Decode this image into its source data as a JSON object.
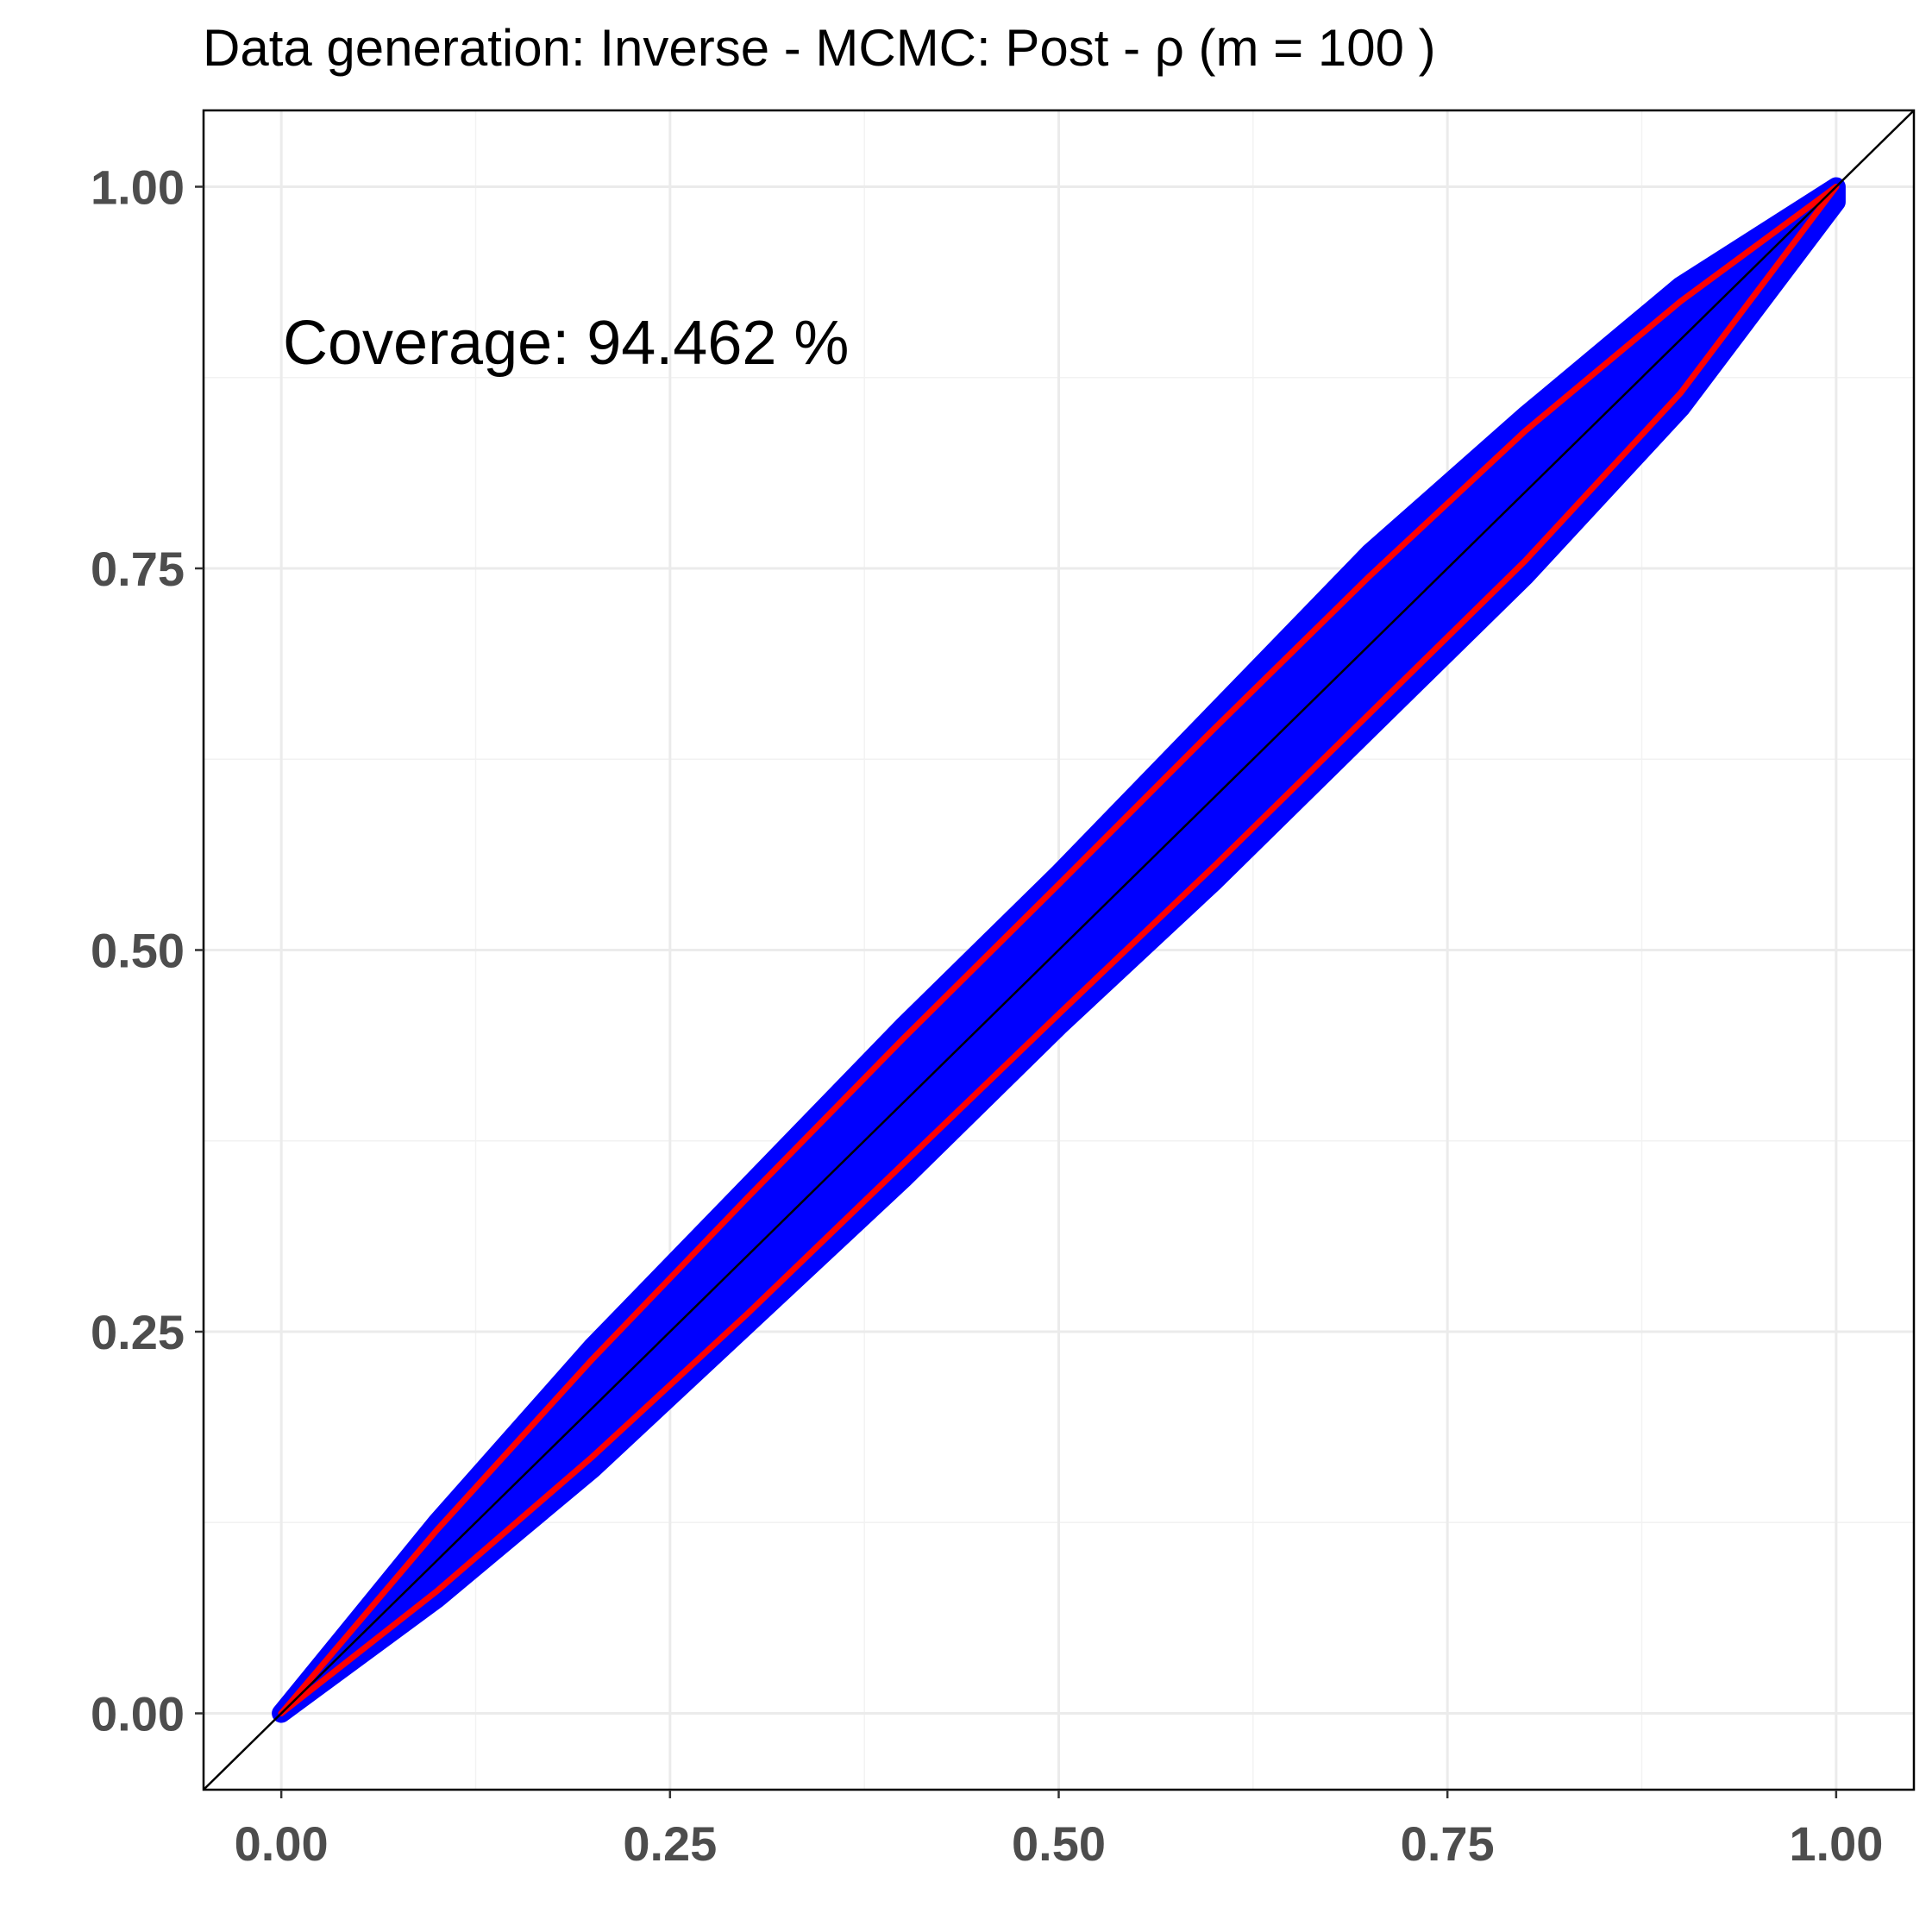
{
  "chart_data": {
    "type": "scatter",
    "title": "Data generation:  Inverse - MCMC:  Post  -  ρ  (m =  100 )",
    "xlabel": "",
    "ylabel": "",
    "xlim": [
      -0.05,
      1.05
    ],
    "ylim": [
      -0.05,
      1.05
    ],
    "x_ticks": [
      0.0,
      0.25,
      0.5,
      0.75,
      1.0
    ],
    "y_ticks": [
      0.0,
      0.25,
      0.5,
      0.75,
      1.0
    ],
    "x_tick_labels": [
      "0.00",
      "0.25",
      "0.50",
      "0.75",
      "1.00"
    ],
    "y_tick_labels": [
      "0.00",
      "0.25",
      "0.50",
      "0.75",
      "1.00"
    ],
    "grid": true,
    "annotation": "Coverage:  94.462 %",
    "reference_line": {
      "slope": 1,
      "intercept": 0,
      "color": "#000000"
    },
    "band": {
      "name": "points",
      "color": "#0000ff",
      "x": [
        0.0,
        0.1,
        0.2,
        0.3,
        0.4,
        0.5,
        0.6,
        0.7,
        0.8,
        0.9,
        1.0
      ],
      "y_upper": [
        0.0,
        0.125,
        0.24,
        0.345,
        0.45,
        0.55,
        0.655,
        0.76,
        0.85,
        0.935,
        1.0
      ],
      "y_lower": [
        0.0,
        0.075,
        0.16,
        0.255,
        0.35,
        0.45,
        0.545,
        0.645,
        0.745,
        0.855,
        0.99
      ]
    },
    "curves": [
      {
        "name": "upper",
        "color": "#ff0000",
        "x": [
          0.0,
          0.1,
          0.2,
          0.3,
          0.4,
          0.5,
          0.6,
          0.7,
          0.8,
          0.9,
          1.0
        ],
        "y": [
          0.0,
          0.12,
          0.232,
          0.338,
          0.442,
          0.543,
          0.645,
          0.745,
          0.84,
          0.925,
          1.0
        ]
      },
      {
        "name": "lower",
        "color": "#ff0000",
        "x": [
          0.0,
          0.1,
          0.2,
          0.3,
          0.4,
          0.5,
          0.6,
          0.7,
          0.8,
          0.9,
          1.0
        ],
        "y": [
          0.0,
          0.08,
          0.168,
          0.262,
          0.36,
          0.458,
          0.555,
          0.655,
          0.755,
          0.865,
          1.0
        ]
      }
    ]
  }
}
